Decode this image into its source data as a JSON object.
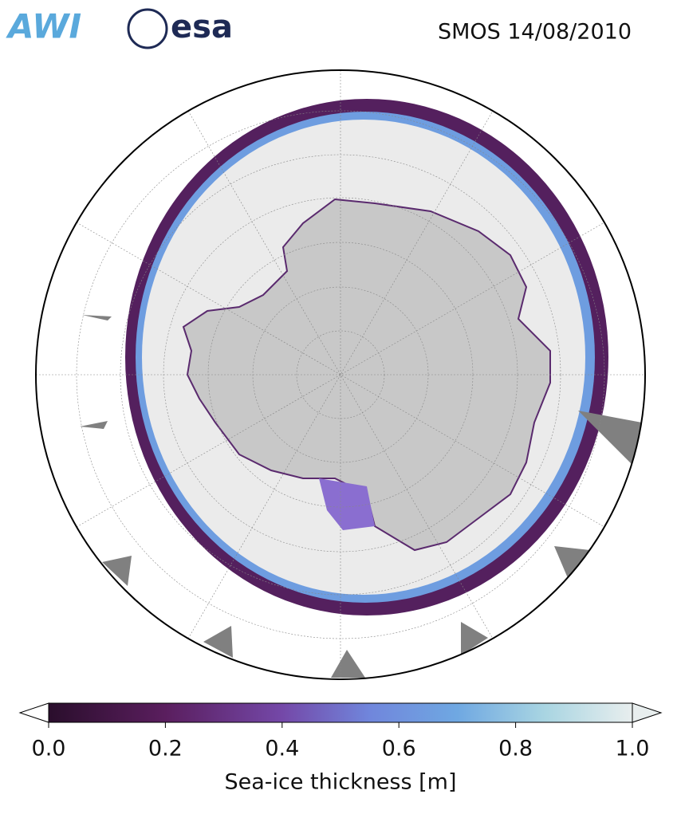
{
  "logos": [
    "AWI",
    "esa"
  ],
  "title": "SMOS 14/08/2010",
  "colorbar": {
    "label": "Sea-ice thickness [m]",
    "lim": [
      0,
      1
    ],
    "ticks": [
      {
        "value": 0,
        "label": "0.0"
      },
      {
        "value": 0.2,
        "label": "0.2"
      },
      {
        "value": 0.4,
        "label": "0.4"
      },
      {
        "value": 0.6,
        "label": "0.6"
      },
      {
        "value": 0.8,
        "label": "0.8"
      },
      {
        "value": 1,
        "label": "1.0"
      }
    ]
  }
}
